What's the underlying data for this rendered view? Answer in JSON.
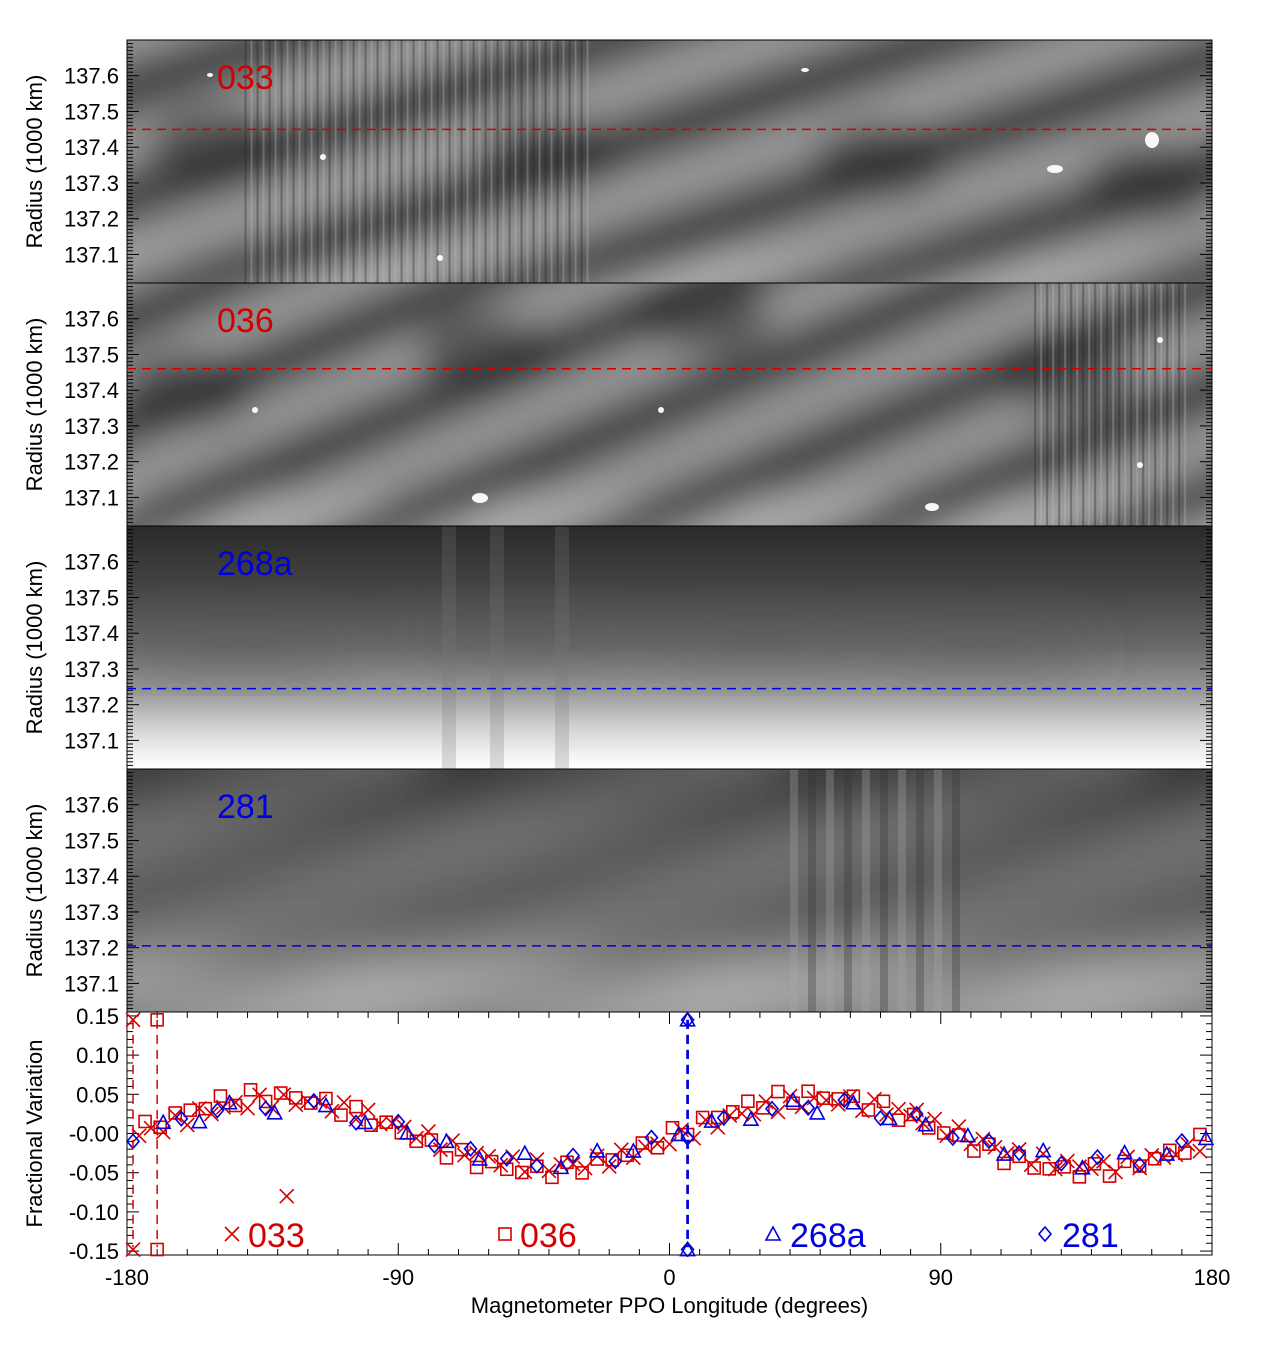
{
  "chart_data": [
    {
      "type": "heatmap",
      "panel_label": "033",
      "label_color": "#d40000",
      "ylabel": "Radius (1000 km)",
      "ylim": [
        137.02,
        137.7
      ],
      "yticks": [
        "137.6",
        "137.5",
        "137.4",
        "137.3",
        "137.2",
        "137.1"
      ],
      "ytick_values": [
        137.6,
        137.5,
        137.4,
        137.3,
        137.2,
        137.1
      ],
      "xlim": [
        -180,
        180
      ],
      "reference_radius": 137.45,
      "reference_color": "#d40000",
      "dark_bands": [
        {
          "lon": -150,
          "r": 137.4
        },
        {
          "lon": -40,
          "r": 137.38
        },
        {
          "lon": 70,
          "r": 137.36
        },
        {
          "lon": 160,
          "r": 137.3
        }
      ]
    },
    {
      "type": "heatmap",
      "panel_label": "036",
      "label_color": "#d40000",
      "ylabel": "Radius (1000 km)",
      "ylim": [
        137.02,
        137.7
      ],
      "yticks": [
        "137.6",
        "137.5",
        "137.4",
        "137.3",
        "137.2",
        "137.1"
      ],
      "ytick_values": [
        137.6,
        137.5,
        137.4,
        137.3,
        137.2,
        137.1
      ],
      "xlim": [
        -180,
        180
      ],
      "reference_radius": 137.46,
      "reference_color": "#d40000",
      "dark_bands": [
        {
          "lon": -160,
          "r": 137.4
        },
        {
          "lon": -60,
          "r": 137.5
        },
        {
          "lon": 10,
          "r": 137.62
        },
        {
          "lon": 130,
          "r": 137.45
        }
      ]
    },
    {
      "type": "heatmap",
      "panel_label": "268a",
      "label_color": "#0000e0",
      "ylabel": "Radius (1000 km)",
      "ylim": [
        137.02,
        137.7
      ],
      "yticks": [
        "137.6",
        "137.5",
        "137.4",
        "137.3",
        "137.2",
        "137.1"
      ],
      "ytick_values": [
        137.6,
        137.5,
        137.4,
        137.3,
        137.2,
        137.1
      ],
      "xlim": [
        -180,
        180
      ],
      "reference_radius": 137.245,
      "reference_color": "#0000e0"
    },
    {
      "type": "heatmap",
      "panel_label": "281",
      "label_color": "#0000e0",
      "ylabel": "Radius (1000 km)",
      "ylim": [
        137.02,
        137.7
      ],
      "yticks": [
        "137.6",
        "137.5",
        "137.4",
        "137.3",
        "137.2",
        "137.1"
      ],
      "ytick_values": [
        137.6,
        137.5,
        137.4,
        137.3,
        137.2,
        137.1
      ],
      "xlim": [
        -180,
        180
      ],
      "reference_radius": 137.205,
      "reference_color": "#0000e0"
    },
    {
      "type": "scatter",
      "ylabel": "Fractional Variation",
      "xlabel": "Magnetometer PPO Longitude (degrees)",
      "xlim": [
        -180,
        180
      ],
      "ylim": [
        -0.155,
        0.155
      ],
      "xticks": [
        "-180",
        "-90",
        "0",
        "90",
        "180"
      ],
      "xtick_values": [
        -180,
        -90,
        0,
        90,
        180
      ],
      "yticks": [
        "0.15",
        "0.10",
        "0.05",
        "-0.00",
        "-0.05",
        "-0.10",
        "-0.15"
      ],
      "ytick_values": [
        0.15,
        0.1,
        0.05,
        0.0,
        -0.05,
        -0.1,
        -0.15
      ],
      "series": [
        {
          "name": "033",
          "marker": "x",
          "color": "#d40000",
          "model": {
            "amp": 0.042,
            "harmonic": 2,
            "phase_deg": -12
          },
          "ref_lon": -178,
          "outliers": [
            [
              -127,
              -0.08
            ],
            [
              82,
              0.03
            ]
          ],
          "x": [
            -176,
            -172,
            -168,
            -164,
            -160,
            -156,
            -152,
            -148,
            -144,
            -140,
            -136,
            -132,
            -128,
            -124,
            -120,
            -116,
            -112,
            -108,
            -104,
            -100,
            -96,
            -92,
            -88,
            -84,
            -80,
            -76,
            -72,
            -68,
            -64,
            -60,
            -56,
            -52,
            -48,
            -44,
            -40,
            -36,
            -32,
            -28,
            -24,
            -20,
            -16,
            -12,
            -8,
            -4,
            0,
            4,
            8,
            12,
            16,
            20,
            24,
            28,
            32,
            36,
            40,
            44,
            48,
            52,
            56,
            60,
            64,
            68,
            72,
            76,
            80,
            84,
            88,
            92,
            96,
            100,
            104,
            108,
            112,
            116,
            120,
            124,
            128,
            132,
            136,
            140,
            144,
            148,
            152,
            156,
            160,
            164,
            168,
            172,
            176
          ]
        },
        {
          "name": "036",
          "marker": "square",
          "color": "#d40000",
          "model": {
            "amp": 0.048,
            "harmonic": 2,
            "phase_deg": -4
          },
          "ref_lon": -170,
          "x": [
            -174,
            -169,
            -164,
            -159,
            -154,
            -149,
            -144,
            -139,
            -134,
            -129,
            -124,
            -119,
            -114,
            -109,
            -104,
            -99,
            -94,
            -89,
            -84,
            -79,
            -74,
            -69,
            -64,
            -59,
            -54,
            -49,
            -44,
            -39,
            -34,
            -29,
            -24,
            -19,
            -14,
            -9,
            -4,
            1,
            6,
            11,
            16,
            21,
            26,
            31,
            36,
            41,
            46,
            51,
            56,
            61,
            66,
            71,
            76,
            81,
            86,
            91,
            96,
            101,
            106,
            111,
            116,
            121,
            126,
            131,
            136,
            141,
            146,
            151,
            156,
            161,
            166,
            171,
            176
          ]
        },
        {
          "name": "268a",
          "marker": "triangle",
          "color": "#0000e0",
          "model": {
            "amp": 0.035,
            "harmonic": 2,
            "phase_deg": -8
          },
          "ref_lon": 6,
          "x": [
            -168,
            -156,
            -146,
            -131,
            -114,
            -101,
            -87,
            -74,
            -63,
            -48,
            -36,
            -24,
            -12,
            3,
            14,
            27,
            41,
            49,
            61,
            73,
            85,
            99,
            111,
            124,
            137,
            151,
            165,
            178
          ]
        },
        {
          "name": "281",
          "marker": "diamond",
          "color": "#0000e0",
          "model": {
            "amp": 0.037,
            "harmonic": 2,
            "phase_deg": -10
          },
          "ref_lon": 6,
          "x": [
            -178,
            -162,
            -150,
            -134,
            -118,
            -104,
            -90,
            -78,
            -66,
            -54,
            -44,
            -32,
            -18,
            -6,
            6,
            18,
            34,
            46,
            58,
            70,
            82,
            94,
            106,
            116,
            130,
            142,
            156,
            170
          ]
        }
      ]
    }
  ]
}
